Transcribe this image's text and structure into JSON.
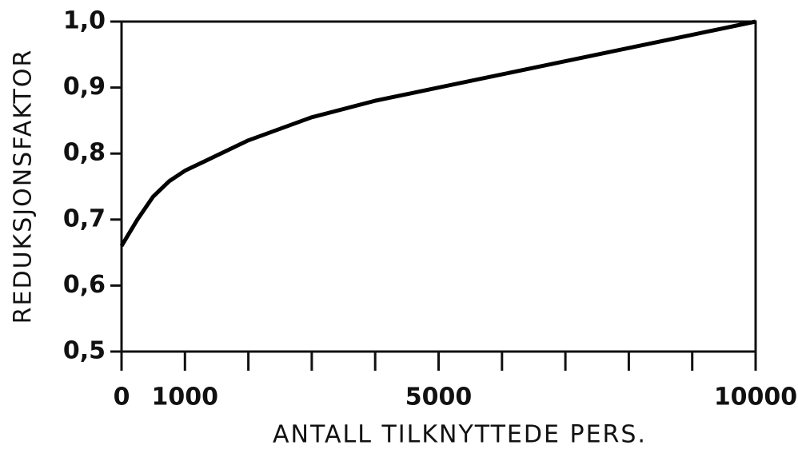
{
  "chart_data": {
    "type": "line",
    "x_label": "ANTALL TILKNYTTEDE PERS.",
    "y_label": "REDUKSJONSFAKTOR",
    "series": [
      {
        "name": "Reduksjonsfaktor",
        "color": "#000000",
        "x": [
          0,
          250,
          500,
          750,
          1000,
          2000,
          3000,
          4000,
          5000,
          6000,
          7000,
          8000,
          9000,
          10000
        ],
        "values": [
          0.66,
          0.7,
          0.735,
          0.758,
          0.774,
          0.82,
          0.855,
          0.88,
          0.9,
          0.92,
          0.94,
          0.96,
          0.98,
          1.0
        ]
      }
    ],
    "xlim": [
      0,
      10000
    ],
    "xticks": [
      0,
      1000,
      5000,
      10000
    ],
    "xminorticks": [
      2000,
      3000,
      4000,
      6000,
      7000,
      8000,
      9000
    ],
    "ylim": [
      0.5,
      1.0
    ],
    "yticks": [
      {
        "value": 0.5,
        "label": "0,5"
      },
      {
        "value": 0.6,
        "label": "0,6"
      },
      {
        "value": 0.7,
        "label": "0,7"
      },
      {
        "value": 0.8,
        "label": "0,8"
      },
      {
        "value": 0.9,
        "label": "0,9"
      },
      {
        "value": 1.0,
        "label": "1,0"
      }
    ],
    "grid": false
  }
}
